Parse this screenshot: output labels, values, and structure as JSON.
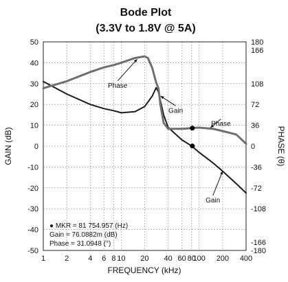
{
  "chart_data": {
    "type": "line",
    "title": "Bode Plot",
    "subtitle": "(3.3V to 1.8V @ 5A)",
    "xlabel": "FREQUENCY (kHz)",
    "ylabel": "GAIN (dB)",
    "y2label": "PHASE (θ)",
    "x_scale": "log",
    "xlim": [
      1,
      400
    ],
    "ylim": [
      -50,
      50
    ],
    "y2lim": [
      -180,
      180
    ],
    "grid": true,
    "x_ticks": [
      1,
      2,
      4,
      6,
      8,
      10,
      20,
      40,
      60,
      80,
      100,
      200,
      400
    ],
    "x_tick_labels": [
      "1",
      "2",
      "4",
      "6",
      "8",
      "10",
      "20",
      "40",
      "60",
      "80",
      "100",
      "200",
      "400"
    ],
    "y_ticks": [
      -50,
      -40,
      -30,
      -20,
      -10,
      0,
      10,
      20,
      30,
      40,
      50
    ],
    "y_tick_labels": [
      "-50",
      "-40",
      "-30",
      "-20",
      "-10",
      "0",
      "10",
      "20",
      "30",
      "40",
      "50"
    ],
    "y2_ticks": [
      -180,
      -166,
      -108,
      -72,
      -36,
      0,
      36,
      72,
      108,
      166,
      180
    ],
    "y2_tick_labels": [
      "-180",
      "-166",
      "-108",
      "-72",
      "-36",
      "0",
      "36",
      "72",
      "108",
      "166",
      "180"
    ],
    "series": [
      {
        "name": "Gain",
        "axis": "left",
        "color": "#1a1a1a",
        "x": [
          1,
          2,
          4,
          6,
          8,
          10,
          15,
          20,
          25,
          28,
          30,
          35,
          40,
          60,
          80,
          100,
          150,
          200,
          300,
          400
        ],
        "values": [
          31,
          25,
          20,
          18,
          17,
          16,
          16.5,
          19,
          24,
          28,
          26,
          15,
          9,
          3,
          0.1,
          -3,
          -8,
          -12,
          -18,
          -22.5
        ]
      },
      {
        "name": "Phase",
        "axis": "right",
        "color": "#6e6e6e",
        "x": [
          1,
          2,
          4,
          6,
          8,
          10,
          15,
          20,
          22,
          25,
          28,
          30,
          32,
          35,
          40,
          60,
          80,
          100,
          150,
          200,
          300,
          400
        ],
        "values": [
          100,
          112,
          128,
          136,
          140,
          144,
          152,
          155,
          152,
          135,
          110,
          100,
          70,
          40,
          30,
          30,
          31,
          32,
          30,
          26,
          20,
          4
        ]
      }
    ],
    "markers": [
      {
        "series": "Gain",
        "x": 81.754957,
        "y": 0.0761
      },
      {
        "series": "Phase",
        "x": 81.754957,
        "y": 31.0948
      }
    ],
    "annotations": [
      {
        "text": "Phase",
        "series": "Phase",
        "x": 9,
        "y": 108,
        "arrow_x": 16,
        "arrow_y": 150
      },
      {
        "text": "Gain",
        "series": "Gain",
        "x": 50,
        "y": 18,
        "arrow_x": 32,
        "arrow_y": 24
      },
      {
        "text": "Phase",
        "series": "Phase",
        "x": 190,
        "y": 42,
        "arrow_x": 140,
        "arrow_y": 32
      },
      {
        "text": "Gain",
        "series": "Gain",
        "x": 150,
        "y": -25,
        "arrow_x": 200,
        "arrow_y": -12
      }
    ],
    "marker_readout": {
      "line1": "● MKR = 81 754.957 (Hz)",
      "line2": "Gain = 76.0882m (dB)",
      "line3": "Phase = 31.0948 (°)"
    }
  }
}
